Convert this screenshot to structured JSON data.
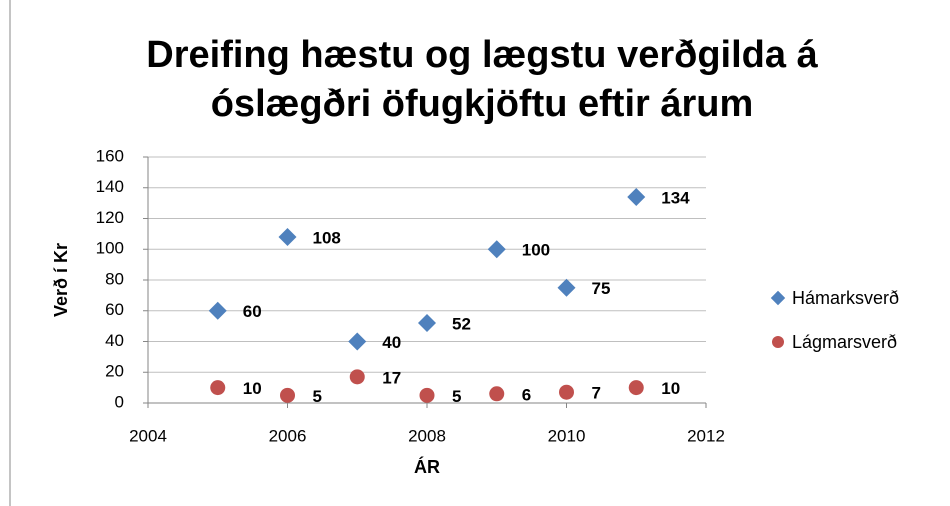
{
  "chart_data": {
    "type": "scatter",
    "title": [
      "Dreifing hæstu og lægstu verðgilda á",
      "óslægðri öfugkjöftu eftir árum"
    ],
    "x_label": "ÁR",
    "y_label": "Verð í Kr",
    "x": [
      2005,
      2006,
      2007,
      2008,
      2009,
      2010,
      2011
    ],
    "series": [
      {
        "name": "Hámarksverð",
        "color": "#4f81bd",
        "marker": "diamond",
        "values": [
          60,
          108,
          40,
          52,
          100,
          75,
          134
        ]
      },
      {
        "name": "Lágmarsverð",
        "color": "#c0504d",
        "marker": "circle",
        "values": [
          10,
          5,
          17,
          5,
          6,
          7,
          10
        ]
      }
    ],
    "xlim": [
      2004,
      2012
    ],
    "xticks": [
      2004,
      2006,
      2008,
      2010,
      2012
    ],
    "ylim": [
      0,
      160
    ],
    "yticks": [
      0,
      20,
      40,
      60,
      80,
      100,
      120,
      140,
      160
    ],
    "grid": true,
    "legend": "right"
  }
}
